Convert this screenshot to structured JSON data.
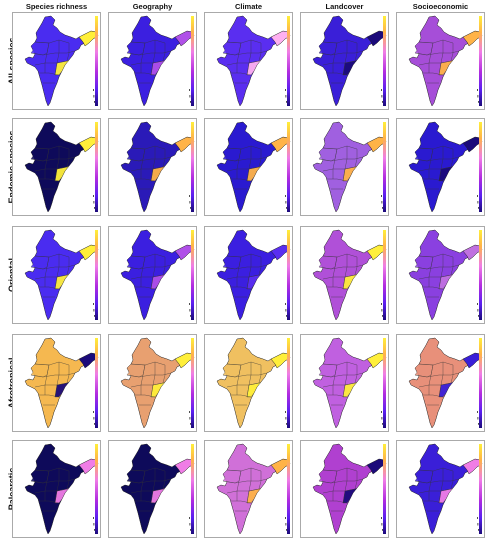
{
  "columns": [
    "Species richness",
    "Geography",
    "Climate",
    "Landcover",
    "Socioeconomic"
  ],
  "rows": [
    "All species",
    "Endemic species",
    "Oriental",
    "Afrotropical",
    "Palearctic"
  ],
  "colormap": {
    "name": "plasma-like",
    "stops": [
      "#ffef3a",
      "#ffb347",
      "#f07de6",
      "#b22ce0",
      "#5a1ff0",
      "#1b0a7a"
    ]
  },
  "map_data": {
    "region": "India",
    "dominant_fill": [
      [
        "#4a2cf0",
        "#3b1fe0",
        "#5a2ef0",
        "#3a1fd8",
        "#a64ed8"
      ],
      [
        "#0e0a5a",
        "#2a1ab8",
        "#2a1ad0",
        "#a060e0",
        "#2a1ad0"
      ],
      [
        "#4a2cf0",
        "#3b1fe0",
        "#3b1fe0",
        "#b050d8",
        "#8a40e0"
      ],
      [
        "#f5b850",
        "#e8a070",
        "#f0c060",
        "#c060e0",
        "#e8907a"
      ],
      [
        "#0e0a5a",
        "#0e0a5a",
        "#d070d8",
        "#b040d0",
        "#3a1fd8"
      ]
    ],
    "accent_fill": [
      [
        "#ffef3a",
        "#b050e8",
        "#ffb0f0",
        "#1b0a7a",
        "#ffb347"
      ],
      [
        "#ffef3a",
        "#ffb347",
        "#ffb347",
        "#ffb347",
        "#1b0a7a"
      ],
      [
        "#ffef3a",
        "#b050e8",
        "#5a2ef0",
        "#ffef3a",
        "#c070e0"
      ],
      [
        "#1b0a7a",
        "#ffef3a",
        "#ffef3a",
        "#ffef3a",
        "#3a1fd8"
      ],
      [
        "#f07de6",
        "#f07de6",
        "#ffb347",
        "#1b0a7a",
        "#f07de6"
      ]
    ]
  }
}
